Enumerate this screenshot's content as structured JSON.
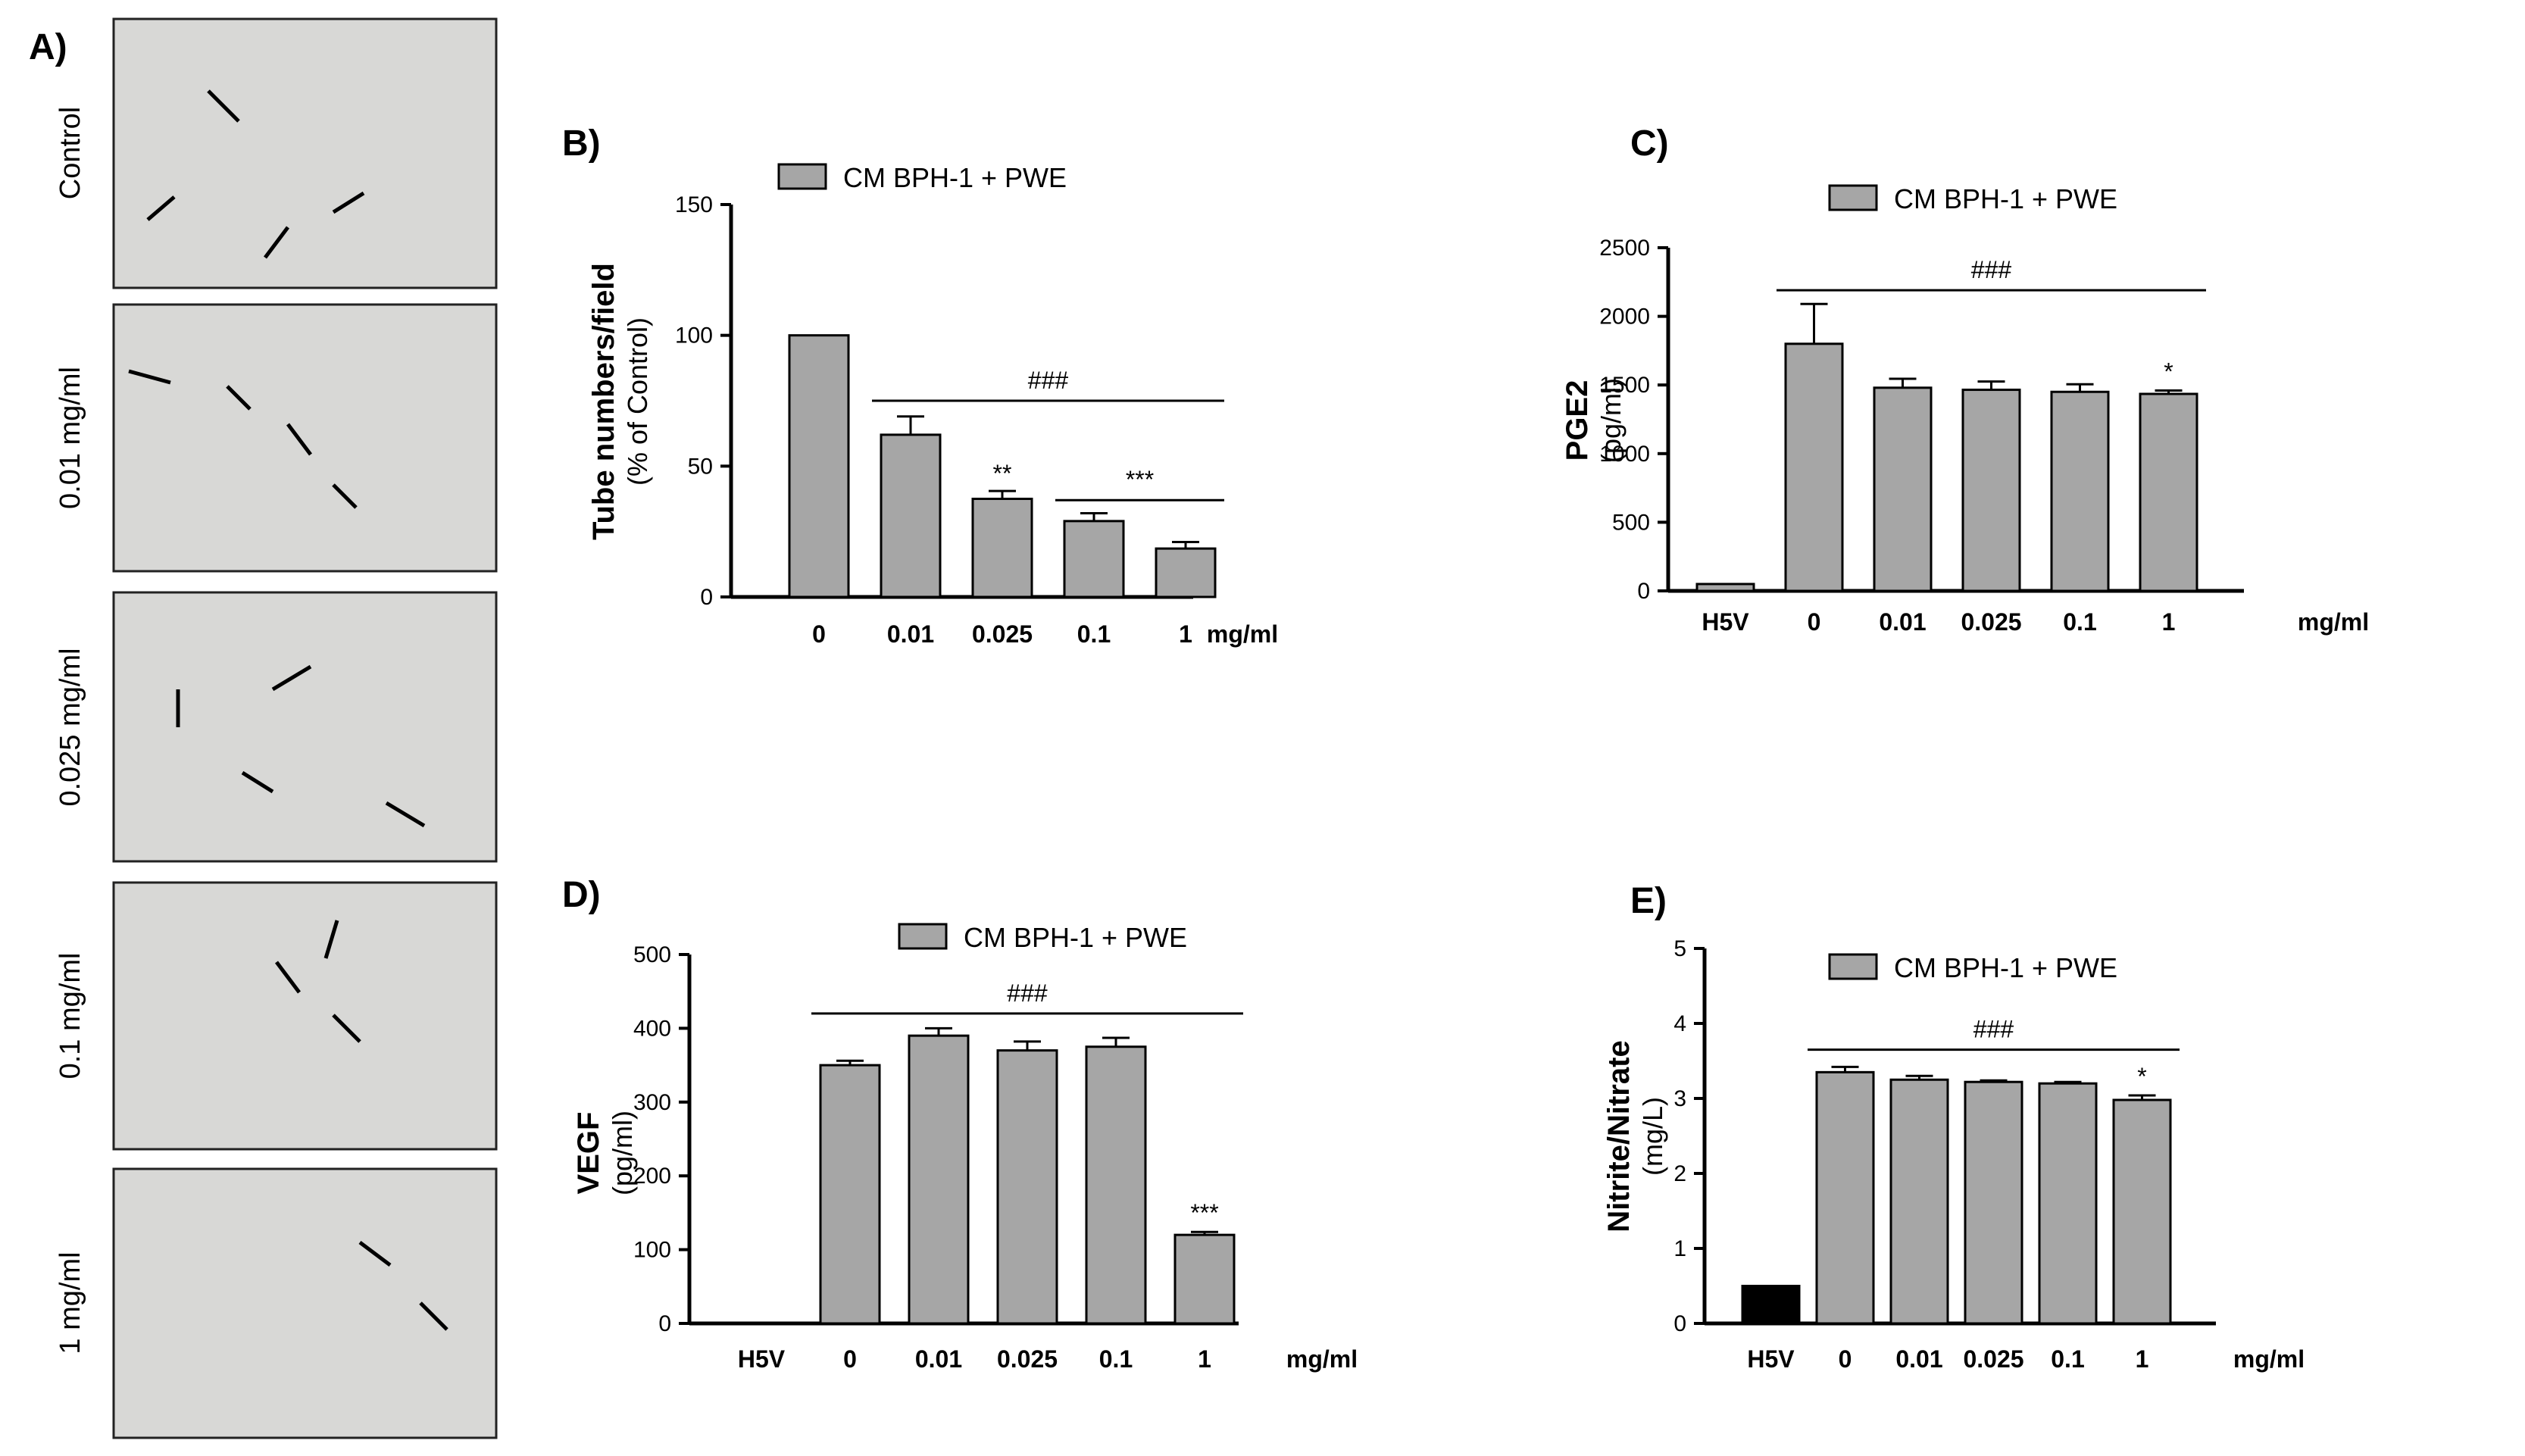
{
  "panel_a": {
    "label": "A)",
    "rows": [
      "Control",
      "0.01 mg/ml",
      "0.025 mg/ml",
      "0.1 mg/ml",
      "1 mg/ml"
    ]
  },
  "colors": {
    "bar": "#a6a6a6",
    "vehicle_bar": "#000000"
  },
  "chart_data": [
    {
      "id": "B",
      "panel_label": "B)",
      "type": "bar",
      "title": "",
      "legend": "CM BPH-1 + PWE",
      "ylabel": "Tube numbers/field",
      "ylabel_sub": "(% of Control)",
      "xlabel": "mg/ml",
      "ylim": [
        0,
        150
      ],
      "yticks": [
        0,
        50,
        100,
        150
      ],
      "categories": [
        "0",
        "0.01",
        "0.025",
        "0.1",
        "1"
      ],
      "values": [
        100,
        62,
        37.5,
        29,
        18.5
      ],
      "errors": [
        0,
        7,
        3,
        3,
        2.5
      ],
      "bar_colors": [
        "gray",
        "gray",
        "gray",
        "gray",
        "gray"
      ],
      "significance": [
        "",
        "",
        "**",
        "",
        ""
      ],
      "brackets": [
        {
          "from": 1,
          "to": 4,
          "label": "###",
          "y": 75
        },
        {
          "from": 3,
          "to": 4,
          "label": "***",
          "y": 37
        }
      ]
    },
    {
      "id": "C",
      "panel_label": "C)",
      "type": "bar",
      "title": "",
      "legend": "CM BPH-1 + PWE",
      "ylabel": "PGE2",
      "ylabel_sub": "(pg/ml)",
      "xlabel": "mg/ml",
      "ylim": [
        0,
        2500
      ],
      "yticks": [
        0,
        500,
        1000,
        1500,
        2000,
        2500
      ],
      "categories": [
        "H5V",
        "0",
        "0.01",
        "0.025",
        "0.1",
        "1"
      ],
      "values": [
        50,
        1800,
        1480,
        1465,
        1450,
        1435
      ],
      "errors": [
        0,
        290,
        65,
        60,
        55,
        25
      ],
      "bar_colors": [
        "gray",
        "gray",
        "gray",
        "gray",
        "gray",
        "gray"
      ],
      "significance": [
        "",
        "",
        "",
        "",
        "",
        "*"
      ],
      "brackets": [
        {
          "from": 1,
          "to": 5,
          "label": "###",
          "y": 2190
        }
      ]
    },
    {
      "id": "D",
      "panel_label": "D)",
      "type": "bar",
      "title": "",
      "legend": "CM BPH-1 + PWE",
      "ylabel": "VEGF",
      "ylabel_sub": "(pg/ml)",
      "xlabel": "mg/ml",
      "ylim": [
        0,
        500
      ],
      "yticks": [
        0,
        100,
        200,
        300,
        400,
        500
      ],
      "categories": [
        "H5V",
        "0",
        "0.01",
        "0.025",
        "0.1",
        "1"
      ],
      "values": [
        0,
        350,
        390,
        370,
        375,
        120
      ],
      "errors": [
        0,
        6,
        10,
        12,
        12,
        4
      ],
      "bar_colors": [
        "gray",
        "gray",
        "gray",
        "gray",
        "gray",
        "gray"
      ],
      "significance": [
        "",
        "",
        "",
        "",
        "",
        "***"
      ],
      "brackets": [
        {
          "from": 1,
          "to": 5,
          "label": "###",
          "y": 420
        }
      ]
    },
    {
      "id": "E",
      "panel_label": "E)",
      "type": "bar",
      "title": "",
      "legend": "CM BPH-1 + PWE",
      "ylabel": "Nitrite/Nitrate",
      "ylabel_sub": "(mg/L)",
      "xlabel": "mg/ml",
      "ylim": [
        0,
        5
      ],
      "yticks": [
        0,
        1,
        2,
        3,
        4,
        5
      ],
      "categories": [
        "H5V",
        "0",
        "0.01",
        "0.025",
        "0.1",
        "1"
      ],
      "values": [
        0.5,
        3.35,
        3.25,
        3.22,
        3.2,
        2.98
      ],
      "errors": [
        0,
        0.07,
        0.05,
        0.02,
        0.02,
        0.06
      ],
      "bar_colors": [
        "black",
        "gray",
        "gray",
        "gray",
        "gray",
        "gray"
      ],
      "significance": [
        "",
        "",
        "",
        "",
        "",
        "*"
      ],
      "brackets": [
        {
          "from": 1,
          "to": 5,
          "label": "###",
          "y": 3.65
        }
      ]
    }
  ]
}
